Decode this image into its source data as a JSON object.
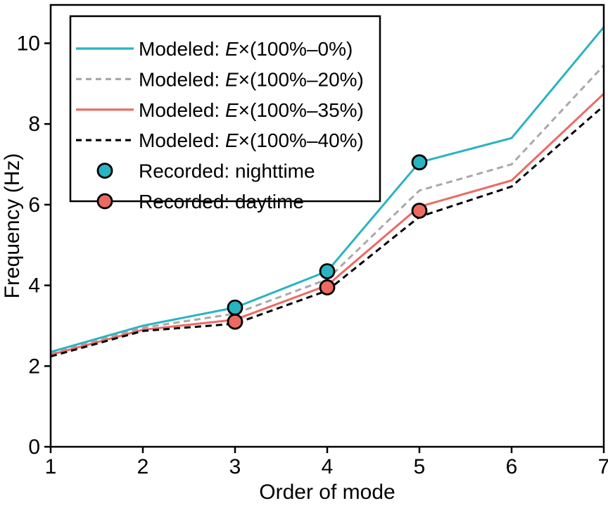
{
  "chart_data": {
    "type": "line",
    "title": "",
    "xlabel": "Order of mode",
    "ylabel": "Frequency (Hz)",
    "xlim": [
      1,
      7
    ],
    "ylim": [
      0,
      10.95
    ],
    "xticks": [
      1,
      2,
      3,
      4,
      5,
      6,
      7
    ],
    "yticks": [
      0,
      2,
      4,
      6,
      8,
      10
    ],
    "grid": false,
    "legend_position": "upper-left",
    "x": [
      1,
      2,
      3,
      4,
      5,
      6,
      7
    ],
    "series": [
      {
        "name": "Modeled: E×(100%–0%)",
        "label_parts": [
          {
            "t": "Modeled: "
          },
          {
            "t": "E",
            "italic": true
          },
          {
            "t": "×(100%–0%)"
          }
        ],
        "line": "solid",
        "color": "#29b4c2",
        "values": [
          2.35,
          3.0,
          3.45,
          4.35,
          7.05,
          7.65,
          10.4
        ]
      },
      {
        "name": "Modeled: E×(100%–20%)",
        "label_parts": [
          {
            "t": "Modeled: "
          },
          {
            "t": "E",
            "italic": true
          },
          {
            "t": "×(100%–20%)"
          }
        ],
        "line": "dashed",
        "color": "#a9a9a9",
        "values": [
          2.3,
          2.95,
          3.3,
          4.15,
          6.35,
          7.0,
          9.45
        ]
      },
      {
        "name": "Modeled: E×(100%–35%)",
        "label_parts": [
          {
            "t": "Modeled: "
          },
          {
            "t": "E",
            "italic": true
          },
          {
            "t": "×(100%–35%)"
          }
        ],
        "line": "solid",
        "color": "#ec6a62",
        "values": [
          2.28,
          2.9,
          3.15,
          4.0,
          5.95,
          6.6,
          8.75
        ]
      },
      {
        "name": "Modeled: E×(100%–40%)",
        "label_parts": [
          {
            "t": "Modeled: "
          },
          {
            "t": "E",
            "italic": true
          },
          {
            "t": "×(100%–40%)"
          }
        ],
        "line": "dashed",
        "color": "#000000",
        "values": [
          2.24,
          2.87,
          3.05,
          3.87,
          5.7,
          6.45,
          8.45
        ]
      }
    ],
    "recorded": [
      {
        "name": "Recorded: nighttime",
        "label_parts": [
          {
            "t": "Recorded: nighttime"
          }
        ],
        "marker": "circle",
        "color": "#29b4c2",
        "points": [
          [
            3,
            3.45
          ],
          [
            4,
            4.35
          ],
          [
            5,
            7.05
          ]
        ]
      },
      {
        "name": "Recorded: daytime",
        "label_parts": [
          {
            "t": "Recorded: daytime"
          }
        ],
        "marker": "circle",
        "color": "#ec6a62",
        "points": [
          [
            3,
            3.1
          ],
          [
            4,
            3.95
          ],
          [
            5,
            5.85
          ]
        ]
      }
    ]
  },
  "colors": {
    "axis": "#000000",
    "marker_edge": "#000000",
    "background": "#ffffff"
  }
}
